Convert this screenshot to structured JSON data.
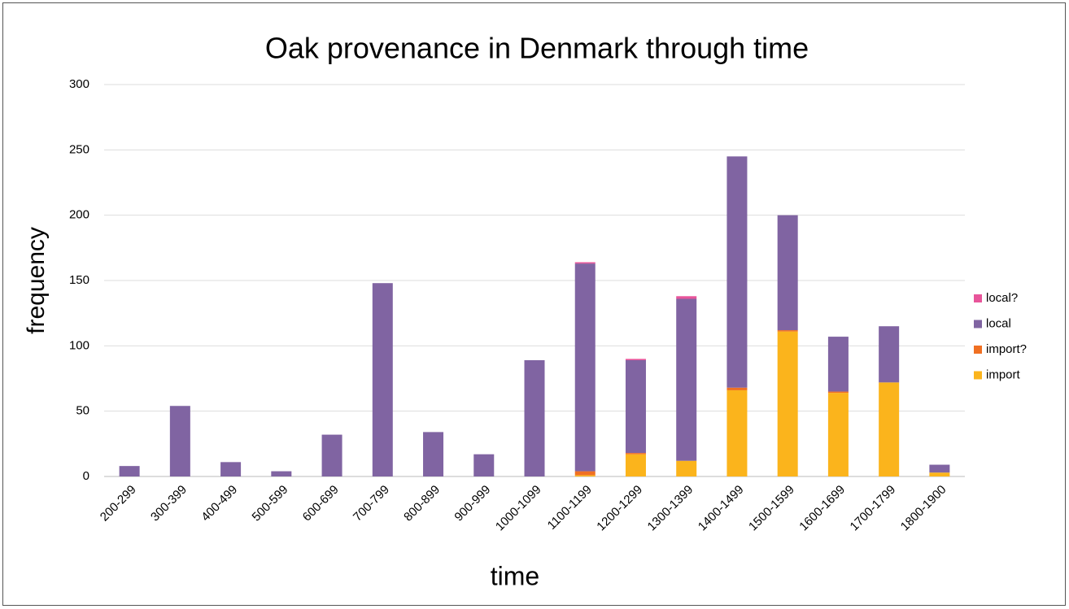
{
  "chart_data": {
    "type": "stacked_bar",
    "title": "Oak provenance in Denmark through time",
    "xlabel": "time",
    "ylabel": "frequency",
    "categories": [
      "200-299",
      "300-399",
      "400-499",
      "500-599",
      "600-699",
      "700-799",
      "800-899",
      "900-999",
      "1000-1099",
      "1100-1199",
      "1200-1299",
      "1300-1399",
      "1400-1499",
      "1500-1599",
      "1600-1699",
      "1700-1799",
      "1800-1900"
    ],
    "series": [
      {
        "name": "import",
        "color": "#fbb41c",
        "values": [
          0,
          0,
          0,
          0,
          0,
          0,
          0,
          0,
          0,
          1,
          17,
          12,
          66,
          111,
          64,
          72,
          3
        ]
      },
      {
        "name": "import?",
        "color": "#f07022",
        "values": [
          0,
          0,
          0,
          0,
          0,
          0,
          0,
          0,
          0,
          3,
          1,
          0,
          2,
          1,
          1,
          0,
          0
        ]
      },
      {
        "name": "local",
        "color": "#8064a2",
        "values": [
          8,
          54,
          11,
          4,
          32,
          148,
          34,
          17,
          89,
          159,
          71,
          124,
          177,
          88,
          42,
          43,
          6
        ]
      },
      {
        "name": "local?",
        "color": "#e8559a",
        "values": [
          0,
          0,
          0,
          0,
          0,
          0,
          0,
          0,
          0,
          1,
          1,
          2,
          0,
          0,
          0,
          0,
          0
        ]
      }
    ],
    "ylim": [
      0,
      300
    ],
    "yticks": [
      0,
      50,
      100,
      150,
      200,
      250,
      300
    ],
    "grid": true,
    "legend": "right"
  }
}
